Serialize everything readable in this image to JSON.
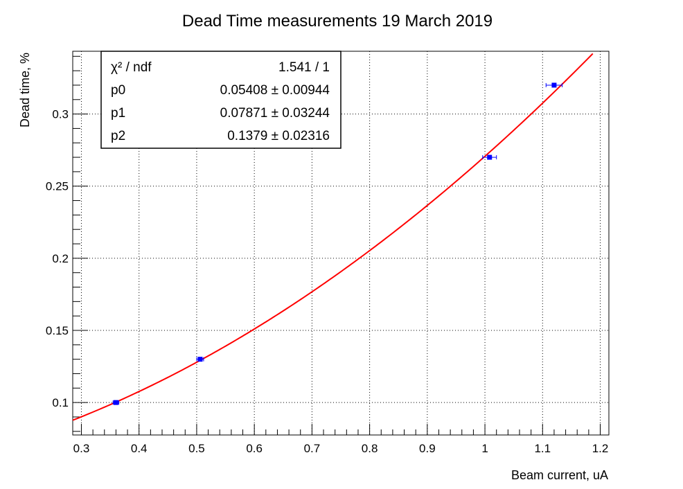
{
  "chart_data": {
    "type": "scatter",
    "title": "Dead Time measurements 19 March 2019",
    "xlabel": "Beam current, uA",
    "ylabel": "Dead time, %",
    "xlim": [
      0.285,
      1.215
    ],
    "ylim": [
      0.0775,
      0.3435
    ],
    "grid": true,
    "x_ticks": [
      0.3,
      0.4,
      0.5,
      0.6,
      0.7,
      0.8,
      0.9,
      1.0,
      1.1,
      1.2
    ],
    "x_tick_labels": [
      "0.3",
      "0.4",
      "0.5",
      "0.6",
      "0.7",
      "0.8",
      "0.9",
      "1",
      "1.1",
      "1.2"
    ],
    "y_ticks": [
      0.1,
      0.15,
      0.2,
      0.25,
      0.3
    ],
    "y_tick_labels": [
      "0.1",
      "0.15",
      "0.2",
      "0.25",
      "0.3"
    ],
    "series": [
      {
        "color": "#0000ff",
        "points": [
          {
            "x": 0.36,
            "y": 0.1,
            "xerr": 0.005
          },
          {
            "x": 0.506,
            "y": 0.13,
            "xerr": 0.006
          },
          {
            "x": 1.008,
            "y": 0.27,
            "xerr": 0.012
          },
          {
            "x": 1.12,
            "y": 0.32,
            "xerr": 0.014
          }
        ]
      }
    ],
    "fit": {
      "color": "#ff0000",
      "function": "pol2",
      "p0": 0.05408,
      "p1": 0.07871,
      "p2": 0.1379,
      "x_range": [
        0.285,
        1.215
      ]
    }
  },
  "stats_box": {
    "rows": [
      {
        "name": "χ² / ndf",
        "value": "1.541 / 1"
      },
      {
        "name": "p0",
        "value": "0.05408 ± 0.00944"
      },
      {
        "name": "p1",
        "value": "0.07871 ± 0.03244"
      },
      {
        "name": "p2",
        "value": "0.1379 ± 0.02316"
      }
    ]
  }
}
